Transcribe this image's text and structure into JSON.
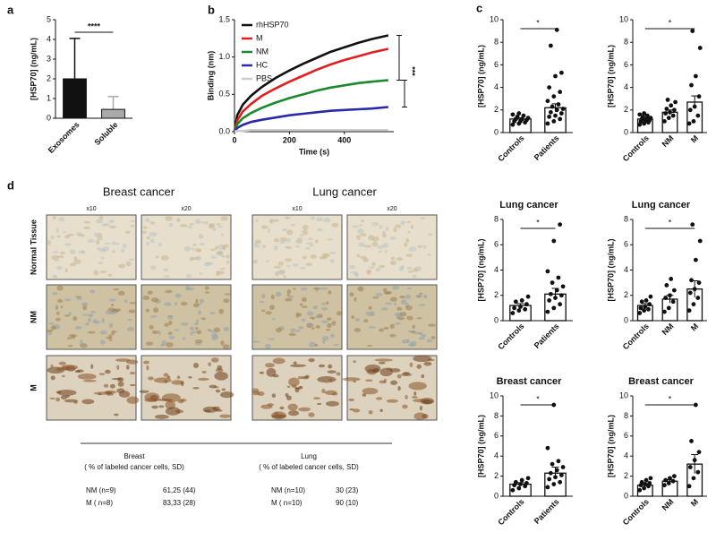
{
  "panel_labels": [
    "a",
    "b",
    "c",
    "d"
  ],
  "chart_data": [
    {
      "type": "bar",
      "ylabel": "[HSP70] (ng/mL)",
      "categories": [
        "Exosomes",
        "Soluble"
      ],
      "values": [
        2.0,
        0.45
      ],
      "errors": [
        2.05,
        0.65
      ],
      "colors": [
        "#111111",
        "#aaaaaa"
      ],
      "ylim": [
        0,
        5
      ],
      "yticks": [
        0,
        1,
        2,
        3,
        4,
        5
      ],
      "annotation": "****"
    },
    {
      "type": "line",
      "xlabel": "Time (s)",
      "ylabel": "Binding (nm)",
      "x": [
        0,
        10,
        30,
        60,
        100,
        150,
        200,
        250,
        300,
        350,
        400,
        450,
        500,
        560
      ],
      "series": [
        {
          "name": "rhHSP70",
          "color": "#111111",
          "values": [
            0,
            0.22,
            0.36,
            0.48,
            0.6,
            0.72,
            0.82,
            0.91,
            0.99,
            1.07,
            1.13,
            1.19,
            1.24,
            1.29
          ]
        },
        {
          "name": "M",
          "color": "#e02020",
          "values": [
            0,
            0.15,
            0.27,
            0.37,
            0.48,
            0.58,
            0.67,
            0.75,
            0.83,
            0.9,
            0.96,
            1.01,
            1.06,
            1.11
          ]
        },
        {
          "name": "NM",
          "color": "#1a8a2a",
          "values": [
            0,
            0.1,
            0.18,
            0.25,
            0.32,
            0.39,
            0.45,
            0.5,
            0.55,
            0.59,
            0.62,
            0.65,
            0.67,
            0.69
          ]
        },
        {
          "name": "HC",
          "color": "#2a2aa8",
          "values": [
            0,
            0.05,
            0.09,
            0.13,
            0.16,
            0.19,
            0.22,
            0.24,
            0.26,
            0.28,
            0.29,
            0.3,
            0.31,
            0.33
          ]
        },
        {
          "name": "PBS",
          "color": "#cccccc",
          "values": [
            0,
            0.01,
            0.01,
            0.02,
            0.02,
            0.02,
            0.02,
            0.02,
            0.02,
            0.02,
            0.02,
            0.02,
            0.02,
            0.02
          ]
        }
      ],
      "xlim": [
        0,
        580
      ],
      "xticks": [
        0,
        200,
        400
      ],
      "ylim": [
        0,
        1.5
      ],
      "yticks": [
        {
          "value": 0,
          "label": "0.0"
        },
        {
          "value": 0.5,
          "label": "0.5"
        },
        {
          "value": 1,
          "label": "1.0"
        },
        {
          "value": 1.5,
          "label": "1.5"
        }
      ],
      "annotation": "***"
    },
    {
      "type": "dotplot",
      "ylabel": "[HSP70] (ng/mL)",
      "categories": [
        "Controls",
        "Patients"
      ],
      "values": [
        1.2,
        2.2
      ],
      "errors": [
        0.1,
        0.35
      ],
      "points": [
        [
          0.7,
          0.8,
          0.9,
          1.0,
          1.0,
          1.1,
          1.2,
          1.2,
          1.3,
          1.4,
          1.5,
          1.6,
          1.7
        ],
        [
          0.8,
          1.0,
          1.2,
          1.4,
          1.5,
          1.7,
          1.8,
          2.0,
          2.1,
          2.3,
          2.5,
          2.8,
          3.2,
          3.6,
          4.0,
          5.0,
          5.3,
          7.7,
          9.1
        ]
      ],
      "ylim": [
        0,
        10
      ],
      "yticks": [
        0,
        2,
        4,
        6,
        8,
        10
      ],
      "annotation": "*"
    },
    {
      "type": "dotplot",
      "ylabel": "[HSP70] (ng/mL)",
      "categories": [
        "Controls",
        "NM",
        "M"
      ],
      "values": [
        1.2,
        1.8,
        2.7
      ],
      "errors": [
        0.1,
        0.2,
        0.55
      ],
      "points": [
        [
          0.7,
          0.8,
          0.9,
          1.0,
          1.0,
          1.1,
          1.2,
          1.2,
          1.3,
          1.4,
          1.5,
          1.6,
          1.7
        ],
        [
          1.0,
          1.3,
          1.5,
          1.7,
          1.8,
          2.0,
          2.1,
          2.4,
          2.7,
          2.9
        ],
        [
          0.8,
          1.0,
          1.5,
          2.0,
          2.3,
          3.2,
          4.2,
          5.0,
          7.5,
          9.0
        ]
      ],
      "ylim": [
        0,
        10
      ],
      "yticks": [
        0,
        2,
        4,
        6,
        8,
        10
      ],
      "annotation": "*"
    },
    {
      "type": "dotplot",
      "title": "Lung cancer",
      "ylabel": "[HSP70] (ng/mL)",
      "categories": [
        "Controls",
        "Patients"
      ],
      "values": [
        1.2,
        2.1
      ],
      "errors": [
        0.15,
        0.45
      ],
      "points": [
        [
          0.6,
          0.8,
          0.9,
          1.0,
          1.1,
          1.3,
          1.5,
          1.6,
          1.9
        ],
        [
          0.7,
          1.0,
          1.3,
          1.6,
          1.8,
          2.0,
          2.1,
          2.4,
          2.7,
          3.0,
          3.4,
          3.9,
          6.3,
          7.6
        ]
      ],
      "ylim": [
        0,
        8
      ],
      "yticks": [
        0,
        2,
        4,
        6,
        8
      ],
      "annotation": "*"
    },
    {
      "type": "dotplot",
      "title": "Lung cancer",
      "ylabel": "[HSP70] (ng/mL)",
      "categories": [
        "Controls",
        "NM",
        "M"
      ],
      "values": [
        1.2,
        1.7,
        2.5
      ],
      "errors": [
        0.15,
        0.3,
        0.65
      ],
      "points": [
        [
          0.6,
          0.8,
          0.9,
          1.0,
          1.1,
          1.3,
          1.5,
          1.6,
          1.9
        ],
        [
          0.7,
          1.0,
          1.5,
          1.8,
          2.0,
          2.4,
          2.8,
          3.3
        ],
        [
          0.8,
          1.3,
          1.8,
          2.2,
          2.5,
          3.0,
          3.2,
          4.8,
          6.3,
          7.6
        ]
      ],
      "ylim": [
        0,
        8
      ],
      "yticks": [
        0,
        2,
        4,
        6,
        8
      ],
      "annotation": "*"
    },
    {
      "type": "dotplot",
      "title": "Breast cancer",
      "ylabel": "[HSP70] (ng/mL)",
      "categories": [
        "Controls",
        "Patients"
      ],
      "values": [
        1.2,
        2.3
      ],
      "errors": [
        0.15,
        0.6
      ],
      "points": [
        [
          0.6,
          0.8,
          1.0,
          1.1,
          1.2,
          1.3,
          1.4,
          1.6,
          1.8
        ],
        [
          0.9,
          1.2,
          1.4,
          1.7,
          1.9,
          2.1,
          2.3,
          2.6,
          2.9,
          3.2,
          3.5,
          4.8,
          9.1
        ]
      ],
      "ylim": [
        0,
        10
      ],
      "yticks": [
        0,
        2,
        4,
        6,
        8,
        10
      ],
      "annotation": "*"
    },
    {
      "type": "dotplot",
      "title": "Breast cancer",
      "ylabel": "[HSP70] (ng/mL)",
      "categories": [
        "Controls",
        "NM",
        "M"
      ],
      "values": [
        1.1,
        1.5,
        3.2
      ],
      "errors": [
        0.15,
        0.15,
        0.95
      ],
      "points": [
        [
          0.6,
          0.8,
          1.0,
          1.1,
          1.2,
          1.3,
          1.4,
          1.6,
          1.8
        ],
        [
          1.1,
          1.3,
          1.5,
          1.6,
          1.8,
          2.0
        ],
        [
          1.0,
          1.8,
          2.4,
          2.9,
          3.6,
          4.4,
          5.5,
          9.1
        ]
      ],
      "ylim": [
        0,
        10
      ],
      "yticks": [
        0,
        2,
        4,
        6,
        8,
        10
      ],
      "annotation": "*"
    }
  ],
  "histology": {
    "titles": [
      "Breast cancer",
      "Lung cancer"
    ],
    "magnifications": [
      "x10",
      "x20",
      "x10",
      "x20"
    ],
    "rows": [
      "Normal Tissue",
      "NM",
      "M"
    ]
  },
  "table": {
    "columns": [
      {
        "header": "Breast",
        "subheader": "( % of labeled cancer cells, SD)",
        "rows": [
          [
            "NM (n=9)",
            "61,25 (44)"
          ],
          [
            "M ( n=8)",
            "83,33 (28)"
          ]
        ]
      },
      {
        "header": "Lung",
        "subheader": "( % of labeled cancer cells, SD)",
        "rows": [
          [
            "NM (n=10)",
            "30 (23)"
          ],
          [
            "M ( n=10)",
            "90 (10)"
          ]
        ]
      }
    ]
  }
}
